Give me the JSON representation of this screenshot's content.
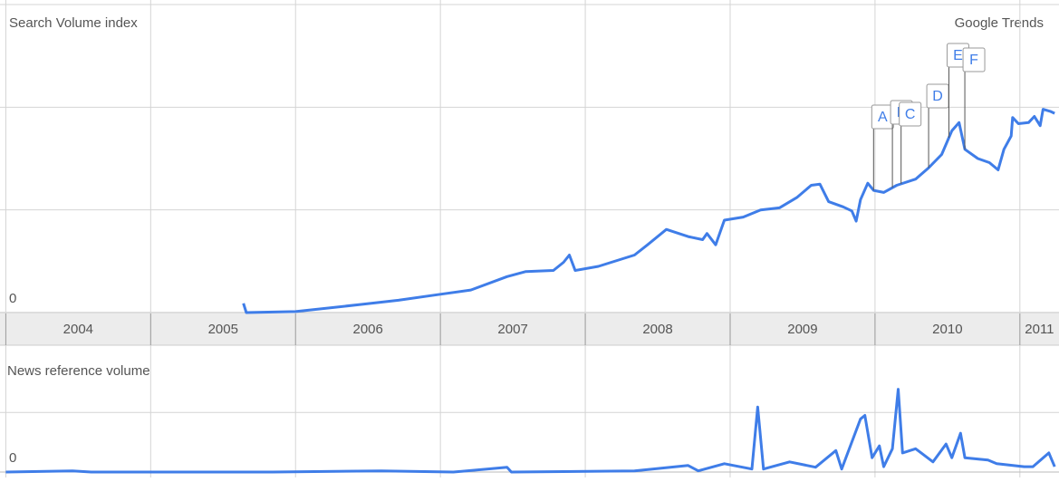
{
  "chart_data": [
    {
      "type": "line",
      "title": "Search Volume index",
      "source": "Google Trends",
      "color": "#3f7de8",
      "xlim": [
        2003.96,
        2011.27
      ],
      "xticks": [
        2004,
        2005,
        2006,
        2007,
        2008,
        2009,
        2010,
        2011
      ],
      "ylim": [
        0,
        3
      ],
      "yticks": [
        0,
        {
          "value": 1,
          "label": null
        },
        {
          "value": 2,
          "label": null
        },
        {
          "value": 3,
          "label": null
        }
      ],
      "grid": true,
      "x": [
        2005.64,
        2005.66,
        2006.0,
        2006.46,
        2006.71,
        2006.96,
        2007.21,
        2007.46,
        2007.59,
        2007.78,
        2007.85,
        2007.89,
        2007.93,
        2008.09,
        2008.34,
        2008.43,
        2008.56,
        2008.71,
        2008.81,
        2008.84,
        2008.9,
        2008.96,
        2009.09,
        2009.21,
        2009.34,
        2009.46,
        2009.56,
        2009.62,
        2009.68,
        2009.78,
        2009.84,
        2009.87,
        2009.9,
        2009.95,
        2009.99,
        2010.06,
        2010.15,
        2010.28,
        2010.37,
        2010.46,
        2010.53,
        2010.58,
        2010.62,
        2010.71,
        2010.79,
        2010.85,
        2010.89,
        2010.94,
        2010.95,
        2010.99,
        2011.06,
        2011.1,
        2011.14,
        2011.16,
        2011.21,
        2011.24
      ],
      "values": [
        0.09,
        0,
        0.01,
        0.08,
        0.12,
        0.17,
        0.22,
        0.35,
        0.4,
        0.41,
        0.49,
        0.56,
        0.41,
        0.45,
        0.56,
        0.66,
        0.81,
        0.74,
        0.71,
        0.77,
        0.66,
        0.9,
        0.93,
        1.0,
        1.02,
        1.12,
        1.24,
        1.25,
        1.08,
        1.03,
        0.99,
        0.89,
        1.1,
        1.26,
        1.19,
        1.17,
        1.24,
        1.3,
        1.41,
        1.54,
        1.77,
        1.85,
        1.59,
        1.5,
        1.46,
        1.39,
        1.59,
        1.72,
        1.9,
        1.84,
        1.85,
        1.91,
        1.82,
        1.98,
        1.96,
        1.94
      ],
      "annotations": [
        {
          "label": "A",
          "x": 2009.99
        },
        {
          "label": "B",
          "x": 2010.12
        },
        {
          "label": "C",
          "x": 2010.18
        },
        {
          "label": "D",
          "x": 2010.37
        },
        {
          "label": "E",
          "x": 2010.51
        },
        {
          "label": "F",
          "x": 2010.62
        }
      ]
    },
    {
      "type": "line",
      "title": "News reference volume",
      "color": "#3f7de8",
      "xlim": [
        2003.96,
        2011.27
      ],
      "ylim": [
        0,
        1.9
      ],
      "yticks": [
        0,
        {
          "value": 1,
          "label": null
        }
      ],
      "grid": true,
      "x": [
        2004.0,
        2004.46,
        2004.59,
        2005.84,
        2006.59,
        2007.09,
        2007.46,
        2007.49,
        2008.34,
        2008.71,
        2008.78,
        2008.96,
        2009.15,
        2009.19,
        2009.23,
        2009.41,
        2009.59,
        2009.73,
        2009.77,
        2009.9,
        2009.93,
        2009.98,
        2010.03,
        2010.06,
        2010.12,
        2010.16,
        2010.19,
        2010.28,
        2010.4,
        2010.49,
        2010.53,
        2010.59,
        2010.62,
        2010.78,
        2010.84,
        2011.03,
        2011.09,
        2011.2,
        2011.24
      ],
      "values": [
        0,
        0.02,
        0,
        0,
        0.02,
        0,
        0.08,
        0,
        0.02,
        0.11,
        0.02,
        0.14,
        0.05,
        1.09,
        0.05,
        0.17,
        0.08,
        0.36,
        0.05,
        0.89,
        0.95,
        0.24,
        0.44,
        0.09,
        0.39,
        1.39,
        0.32,
        0.39,
        0.17,
        0.47,
        0.24,
        0.65,
        0.24,
        0.2,
        0.14,
        0.09,
        0.09,
        0.32,
        0.09
      ]
    }
  ]
}
